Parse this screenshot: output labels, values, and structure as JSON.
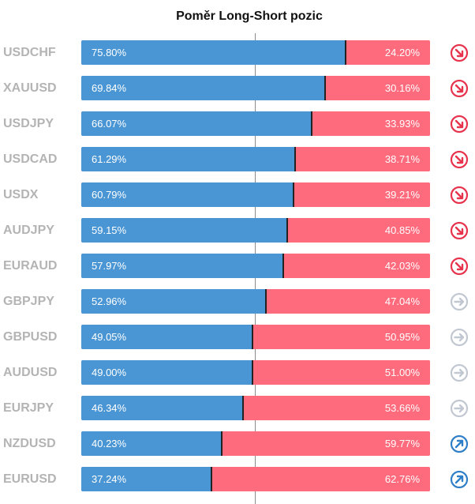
{
  "title": "Poměr Long-Short pozic",
  "colors": {
    "long": "#4a96d4",
    "short": "#fe6b7d",
    "label": "#b4b4b4",
    "signal_down": "#e8334d",
    "signal_neutral": "#c2c8d2",
    "signal_up": "#2f7fc8"
  },
  "chart_data": {
    "type": "bar",
    "stacked": true,
    "orientation": "horizontal",
    "title": "Poměr Long-Short pozic",
    "categories": [
      "USDCHF",
      "XAUUSD",
      "USDJPY",
      "USDCAD",
      "USDX",
      "AUDJPY",
      "EURAUD",
      "GBPJPY",
      "GBPUSD",
      "AUDUSD",
      "EURJPY",
      "NZDUSD",
      "EURUSD"
    ],
    "series": [
      {
        "values": [
          75.8,
          69.84,
          66.07,
          61.29,
          60.79,
          59.15,
          57.97,
          52.96,
          49.05,
          49.0,
          46.34,
          40.23,
          37.24
        ]
      },
      {
        "values": [
          24.2,
          30.16,
          33.93,
          38.71,
          39.21,
          40.85,
          42.03,
          47.04,
          50.95,
          51.0,
          53.66,
          59.77,
          62.76
        ]
      }
    ],
    "value_labels": {
      "long": [
        "75.80%",
        "69.84%",
        "66.07%",
        "61.29%",
        "60.79%",
        "59.15%",
        "57.97%",
        "52.96%",
        "49.05%",
        "49.00%",
        "46.34%",
        "40.23%",
        "37.24%"
      ],
      "short": [
        "24.20%",
        "30.16%",
        "33.93%",
        "38.71%",
        "39.21%",
        "40.85%",
        "42.03%",
        "47.04%",
        "50.95%",
        "51.00%",
        "53.66%",
        "59.77%",
        "62.76%"
      ]
    },
    "signals": [
      "down",
      "down",
      "down",
      "down",
      "down",
      "down",
      "down",
      "neutral",
      "neutral",
      "neutral",
      "neutral",
      "up",
      "up"
    ],
    "xlim": [
      0,
      100
    ]
  }
}
